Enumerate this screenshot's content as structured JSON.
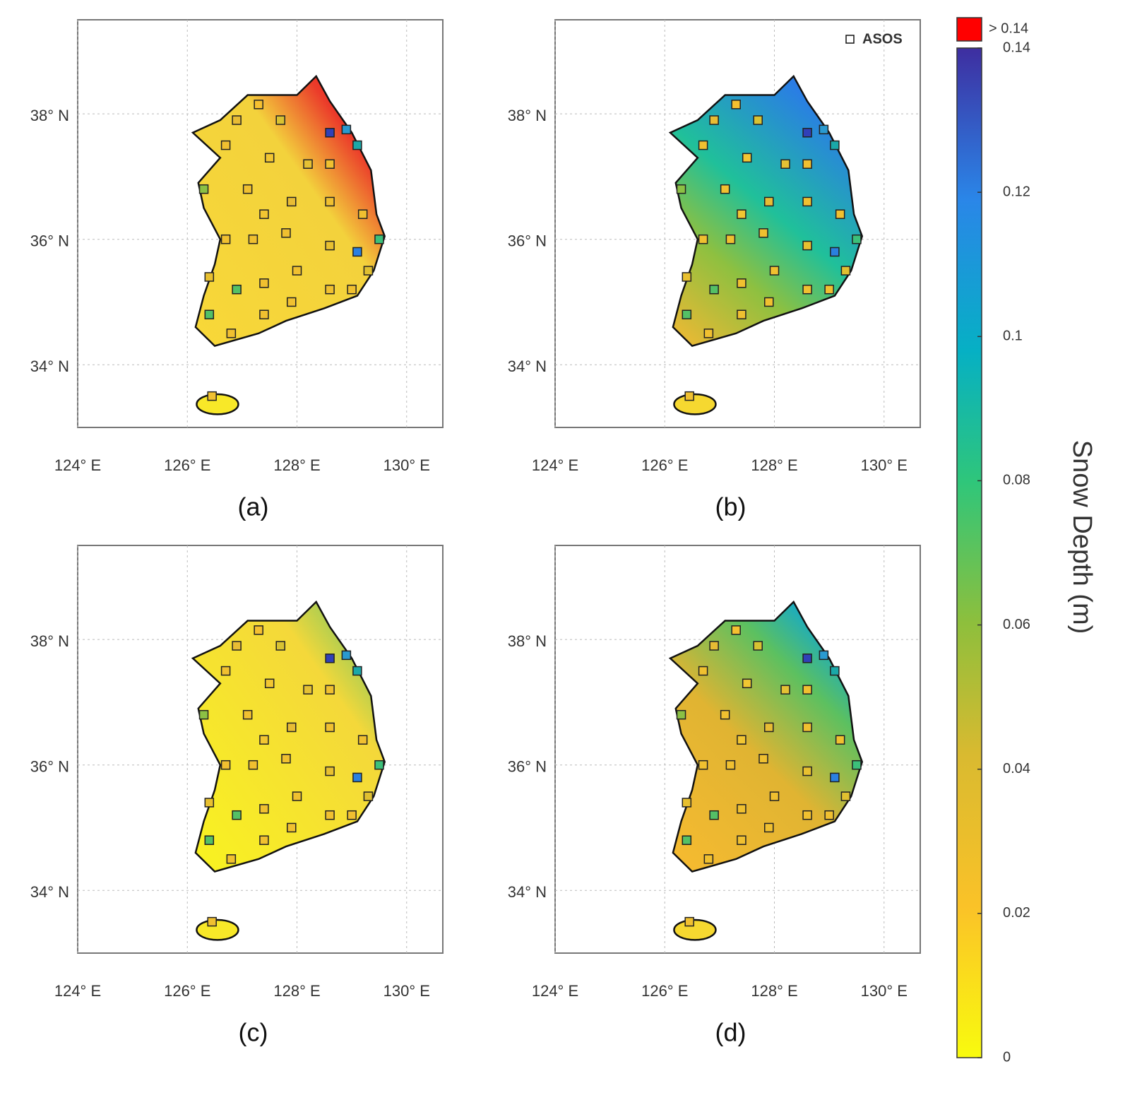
{
  "map": {
    "xlim": [
      124,
      130.66
    ],
    "ylim": [
      33,
      39.5
    ],
    "xticks": [
      {
        "value": 124,
        "label": "124° E"
      },
      {
        "value": 126,
        "label": "126° E"
      },
      {
        "value": 128,
        "label": "128° E"
      },
      {
        "value": 130,
        "label": "130° E"
      }
    ],
    "yticks": [
      {
        "value": 34,
        "label": "34° N"
      },
      {
        "value": 36,
        "label": "36° N"
      },
      {
        "value": 38,
        "label": "38° N"
      }
    ],
    "panels": [
      {
        "label": "(a)"
      },
      {
        "label": "(b)"
      },
      {
        "label": "(c)"
      },
      {
        "label": "(d)"
      }
    ],
    "legend": "ASOS",
    "colorbar": {
      "title": "Snow Depth (m)",
      "over_label": "> 0.14",
      "over_color": "#ff0000",
      "ylim": [
        0,
        0.14
      ],
      "ticks": [
        0,
        0.02,
        0.04,
        0.06,
        0.08,
        0.1,
        0.12,
        0.14
      ]
    }
  }
}
